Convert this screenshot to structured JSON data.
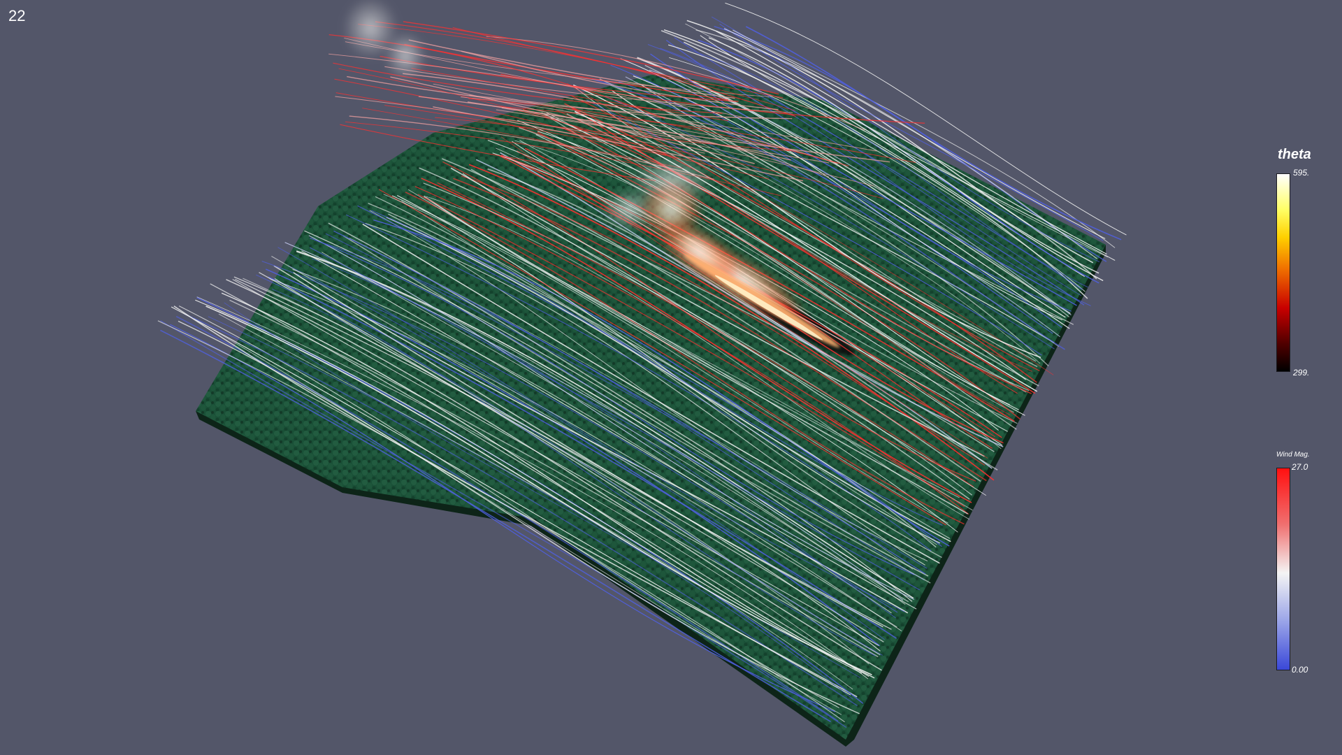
{
  "frame_number": "22",
  "scene": {
    "description_icon": "terrain-streamline-visualization",
    "colors": {
      "background": "#535669",
      "terrain": "#1e5a3e",
      "terrain_dark": "#0f3322",
      "streamline_low": "#5060e0",
      "streamline_mid": "#f2f2f2",
      "streamline_high": "#ff3030"
    }
  },
  "legends": {
    "theta": {
      "title": "theta",
      "max": "595.",
      "min": "299."
    },
    "wind": {
      "title": "Wind Mag.",
      "max": "27.0",
      "min": "0.00"
    }
  }
}
